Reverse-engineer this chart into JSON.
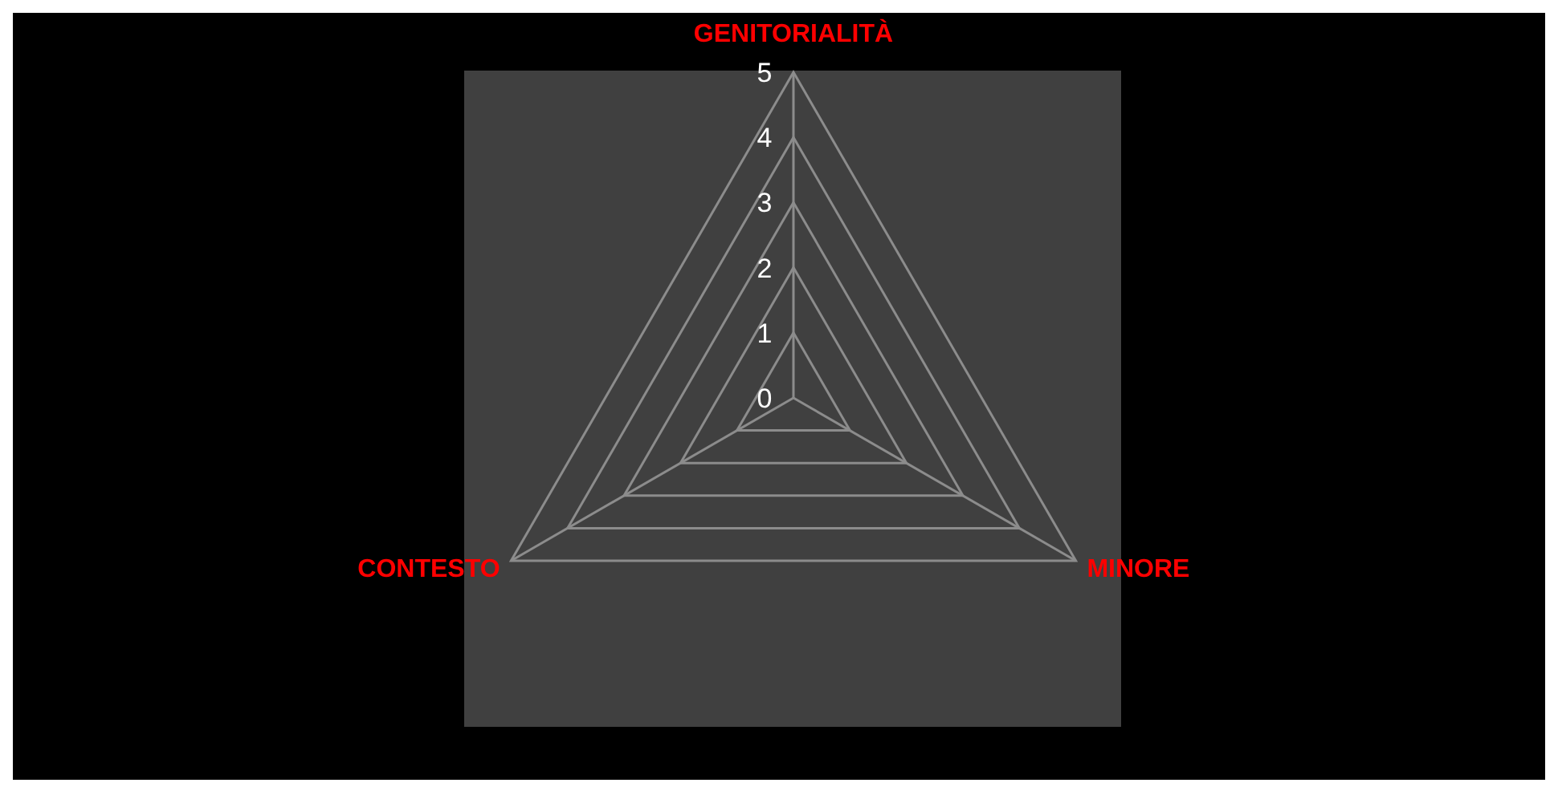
{
  "chart_data": {
    "type": "radar",
    "categories": [
      "GENITORIALITÀ",
      "MINORE",
      "CONTESTO"
    ],
    "ylim": [
      0,
      5
    ],
    "yticks": [
      0,
      1,
      2,
      3,
      4,
      5
    ],
    "grid": true
  }
}
